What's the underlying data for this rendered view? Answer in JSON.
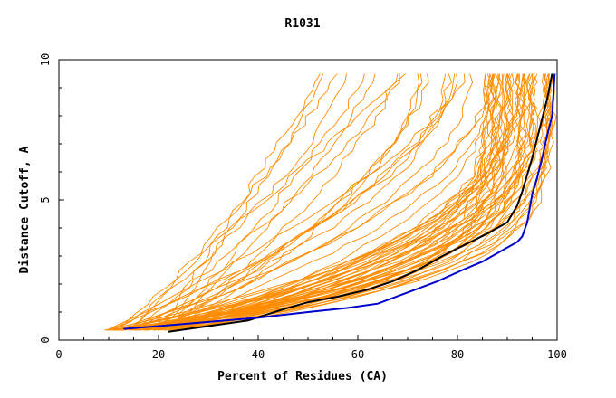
{
  "chart_data": {
    "type": "line",
    "title": "R1031",
    "xlabel": "Percent of Residues (CA)",
    "ylabel": "Distance Cutoff, A",
    "xlim": [
      0,
      100
    ],
    "ylim": [
      0,
      10
    ],
    "x_ticks": [
      0,
      20,
      40,
      60,
      80,
      100
    ],
    "y_ticks": [
      0,
      5,
      10
    ],
    "grid": false,
    "colors": {
      "background_series": "#ff8c00",
      "highlight_black": "#000000",
      "highlight_blue": "#0000cc"
    },
    "highlight_series": [
      {
        "color": "#000000",
        "points": [
          [
            22,
            0.3
          ],
          [
            30,
            0.5
          ],
          [
            38,
            0.7
          ],
          [
            45,
            1.1
          ],
          [
            50,
            1.35
          ],
          [
            56,
            1.55
          ],
          [
            62,
            1.8
          ],
          [
            67,
            2.1
          ],
          [
            72,
            2.5
          ],
          [
            77,
            3.0
          ],
          [
            82,
            3.45
          ],
          [
            86,
            3.8
          ],
          [
            90,
            4.2
          ],
          [
            92,
            4.8
          ],
          [
            93,
            5.3
          ],
          [
            94,
            5.9
          ],
          [
            95,
            6.5
          ],
          [
            96,
            7.2
          ],
          [
            97,
            7.9
          ],
          [
            98,
            8.6
          ],
          [
            99,
            9.5
          ]
        ]
      },
      {
        "color": "#0000cc",
        "points": [
          [
            13,
            0.4
          ],
          [
            20,
            0.5
          ],
          [
            30,
            0.65
          ],
          [
            40,
            0.8
          ],
          [
            50,
            1.0
          ],
          [
            58,
            1.15
          ],
          [
            64,
            1.3
          ],
          [
            70,
            1.7
          ],
          [
            76,
            2.1
          ],
          [
            81,
            2.5
          ],
          [
            85,
            2.8
          ],
          [
            89,
            3.2
          ],
          [
            92,
            3.5
          ],
          [
            93,
            3.7
          ],
          [
            94,
            4.2
          ],
          [
            95,
            5.2
          ],
          [
            96,
            5.8
          ],
          [
            97,
            6.5
          ],
          [
            98,
            7.3
          ],
          [
            99,
            8.0
          ],
          [
            99.5,
            9.5
          ]
        ]
      }
    ],
    "background_series_model": {
      "count": 70,
      "x_start_range": [
        9,
        24
      ],
      "y_start": 0.35,
      "y_end": 9.5
    }
  }
}
